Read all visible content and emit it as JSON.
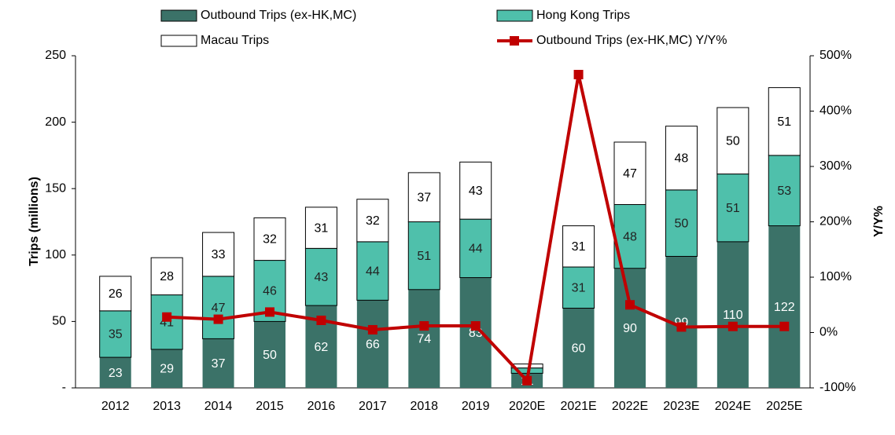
{
  "chart_data": {
    "type": "stacked_bar_line",
    "categories": [
      "2012",
      "2013",
      "2014",
      "2015",
      "2016",
      "2017",
      "2018",
      "2019",
      "2020E",
      "2021E",
      "2022E",
      "2023E",
      "2024E",
      "2025E"
    ],
    "series": [
      {
        "name": "Outbound Trips (ex-HK,MC)",
        "color": "#3b7268",
        "label_color": "#ffffff",
        "values": [
          23,
          29,
          37,
          50,
          62,
          66,
          74,
          83,
          11,
          60,
          90,
          99,
          110,
          122
        ]
      },
      {
        "name": "Hong Kong Trips",
        "color": "#4fc0ab",
        "label_color": "#222222",
        "values": [
          35,
          41,
          47,
          46,
          43,
          44,
          51,
          44,
          4,
          31,
          48,
          50,
          51,
          53
        ],
        "value_labels": [
          "35",
          "41",
          "47",
          "46",
          "43",
          "44",
          "51",
          "44",
          null,
          "31",
          "48",
          "50",
          "51",
          "53"
        ]
      },
      {
        "name": "Macau Trips",
        "color": "#ffffff",
        "label_color": "#000000",
        "values": [
          26,
          28,
          33,
          32,
          31,
          32,
          37,
          43,
          3,
          31,
          47,
          48,
          50,
          51
        ],
        "value_labels": [
          "26",
          "28",
          "33",
          "32",
          "31",
          "32",
          "37",
          "43",
          null,
          "31",
          "47",
          "48",
          "50",
          "51"
        ]
      },
      {
        "name": "Outbound Trips (ex-HK,MC) Y/Y%",
        "type": "line",
        "axis": "y2",
        "color": "#c00000",
        "values": [
          null,
          28,
          24,
          37,
          22,
          5,
          12,
          12,
          -87,
          466,
          50,
          10,
          11,
          11
        ]
      }
    ],
    "ylabel": "Trips (millions)",
    "y2label": "Y/Y%",
    "ylim": [
      0,
      250
    ],
    "yticks": [
      {
        "value": 0,
        "label": "-"
      },
      50,
      100,
      150,
      200,
      250
    ],
    "y2lim": [
      -100,
      500
    ],
    "y2ticks": [
      {
        "value": -100,
        "label": "-100%"
      },
      {
        "value": 0,
        "label": "0%"
      },
      {
        "value": 100,
        "label": "100%"
      },
      {
        "value": 200,
        "label": "200%"
      },
      {
        "value": 300,
        "label": "300%"
      },
      {
        "value": 400,
        "label": "400%"
      },
      {
        "value": 500,
        "label": "500%"
      }
    ]
  }
}
